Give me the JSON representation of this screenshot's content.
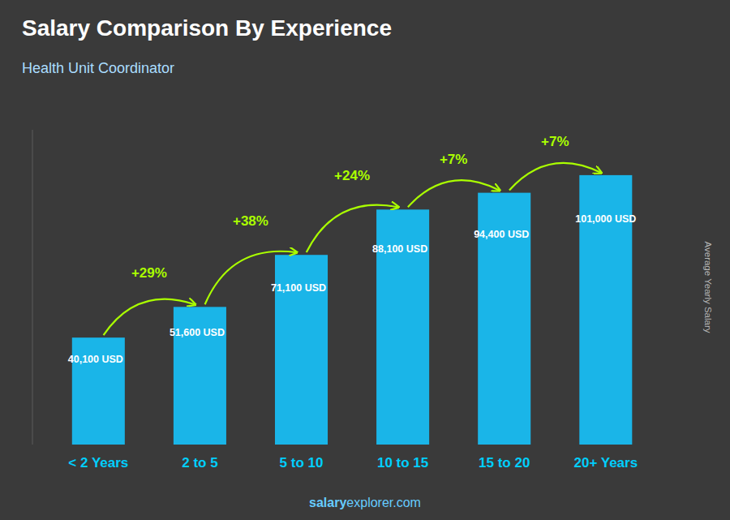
{
  "chart_data": {
    "type": "bar",
    "title": "Salary Comparison By Experience",
    "subtitle": "Health Unit Coordinator",
    "categories": [
      "< 2 Years",
      "2 to 5",
      "5 to 10",
      "10 to 15",
      "15 to 20",
      "20+ Years"
    ],
    "values": [
      40100,
      51600,
      71100,
      88100,
      94400,
      101000
    ],
    "value_labels": [
      "40,100 USD",
      "51,600 USD",
      "71,100 USD",
      "88,100 USD",
      "94,400 USD",
      "101,000 USD"
    ],
    "annotations": [
      null,
      "+29%",
      "+38%",
      "+24%",
      "+7%",
      "+7%"
    ],
    "ylabel": "Average Yearly Salary",
    "source": [
      "salary",
      "explorer.com"
    ],
    "color": "#1ab5e8",
    "ylim": [
      0,
      118000
    ],
    "data_labels": true,
    "tick_labels": "x",
    "grid": false
  }
}
